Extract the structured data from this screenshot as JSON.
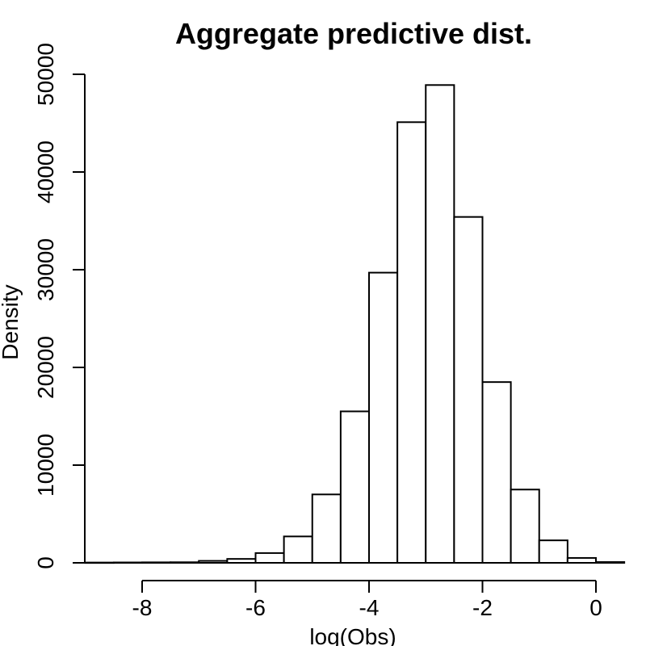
{
  "chart_data": {
    "type": "bar",
    "title": "Aggregate predictive dist.",
    "xlabel": "log(Obs)",
    "ylabel": "Density",
    "xlim": [
      -9,
      0.5
    ],
    "ylim": [
      0,
      50000
    ],
    "x_ticks": [
      -8,
      -6,
      -4,
      -2,
      0
    ],
    "y_ticks": [
      0,
      10000,
      20000,
      30000,
      40000,
      50000
    ],
    "bins": [
      {
        "x0": -9.0,
        "x1": -8.5,
        "value": 30
      },
      {
        "x0": -8.5,
        "x1": -8.0,
        "value": 40
      },
      {
        "x0": -8.0,
        "x1": -7.5,
        "value": 50
      },
      {
        "x0": -7.5,
        "x1": -7.0,
        "value": 60
      },
      {
        "x0": -7.0,
        "x1": -6.5,
        "value": 200
      },
      {
        "x0": -6.5,
        "x1": -6.0,
        "value": 400
      },
      {
        "x0": -6.0,
        "x1": -5.5,
        "value": 1000
      },
      {
        "x0": -5.5,
        "x1": -5.0,
        "value": 2700
      },
      {
        "x0": -5.0,
        "x1": -4.5,
        "value": 7000
      },
      {
        "x0": -4.5,
        "x1": -4.0,
        "value": 15500
      },
      {
        "x0": -4.0,
        "x1": -3.5,
        "value": 29700
      },
      {
        "x0": -3.5,
        "x1": -3.0,
        "value": 45100
      },
      {
        "x0": -3.0,
        "x1": -2.5,
        "value": 48900
      },
      {
        "x0": -2.5,
        "x1": -2.0,
        "value": 35400
      },
      {
        "x0": -2.0,
        "x1": -1.5,
        "value": 18500
      },
      {
        "x0": -1.5,
        "x1": -1.0,
        "value": 7500
      },
      {
        "x0": -1.0,
        "x1": -0.5,
        "value": 2300
      },
      {
        "x0": -0.5,
        "x1": 0.0,
        "value": 500
      },
      {
        "x0": 0.0,
        "x1": 0.5,
        "value": 80
      }
    ]
  }
}
